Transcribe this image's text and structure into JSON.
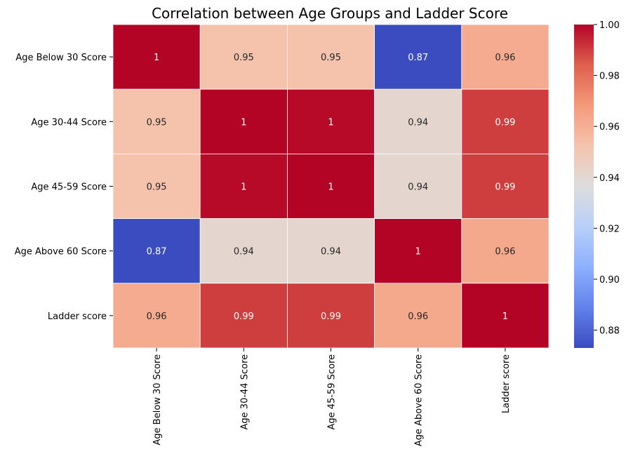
{
  "chart_data": {
    "type": "heatmap",
    "title": "Correlation between Age Groups and Ladder Score",
    "xlabel": "",
    "ylabel": "",
    "row_labels": [
      "Age Below 30 Score",
      "Age 30-44 Score",
      "Age 45-59 Score",
      "Age Above 60 Score",
      "Ladder score"
    ],
    "col_labels": [
      "Age Below 30 Score",
      "Age 30-44 Score",
      "Age 45-59 Score",
      "Age Above 60 Score",
      "Ladder score"
    ],
    "values": [
      [
        1.0,
        0.953,
        0.953,
        0.873,
        0.962
      ],
      [
        0.953,
        1.0,
        0.999,
        0.941,
        0.99
      ],
      [
        0.953,
        0.999,
        1.0,
        0.941,
        0.99
      ],
      [
        0.873,
        0.941,
        0.941,
        1.0,
        0.963
      ],
      [
        0.962,
        0.99,
        0.99,
        0.963,
        1.0
      ]
    ],
    "annotations": [
      [
        "1",
        "0.95",
        "0.95",
        "0.87",
        "0.96"
      ],
      [
        "0.95",
        "1",
        "1",
        "0.94",
        "0.99"
      ],
      [
        "0.95",
        "1",
        "1",
        "0.94",
        "0.99"
      ],
      [
        "0.87",
        "0.94",
        "0.94",
        "1",
        "0.96"
      ],
      [
        "0.96",
        "0.99",
        "0.99",
        "0.96",
        "1"
      ]
    ],
    "colormap": "coolwarm",
    "color_range": [
      0.873,
      1.0
    ],
    "colorbar_ticks": [
      "0.88",
      "0.90",
      "0.92",
      "0.94",
      "0.96",
      "0.98",
      "1.00"
    ],
    "colorbar_tick_values": [
      0.88,
      0.9,
      0.92,
      0.94,
      0.96,
      0.98,
      1.0
    ],
    "grid": false,
    "legend": "colorbar-right"
  }
}
